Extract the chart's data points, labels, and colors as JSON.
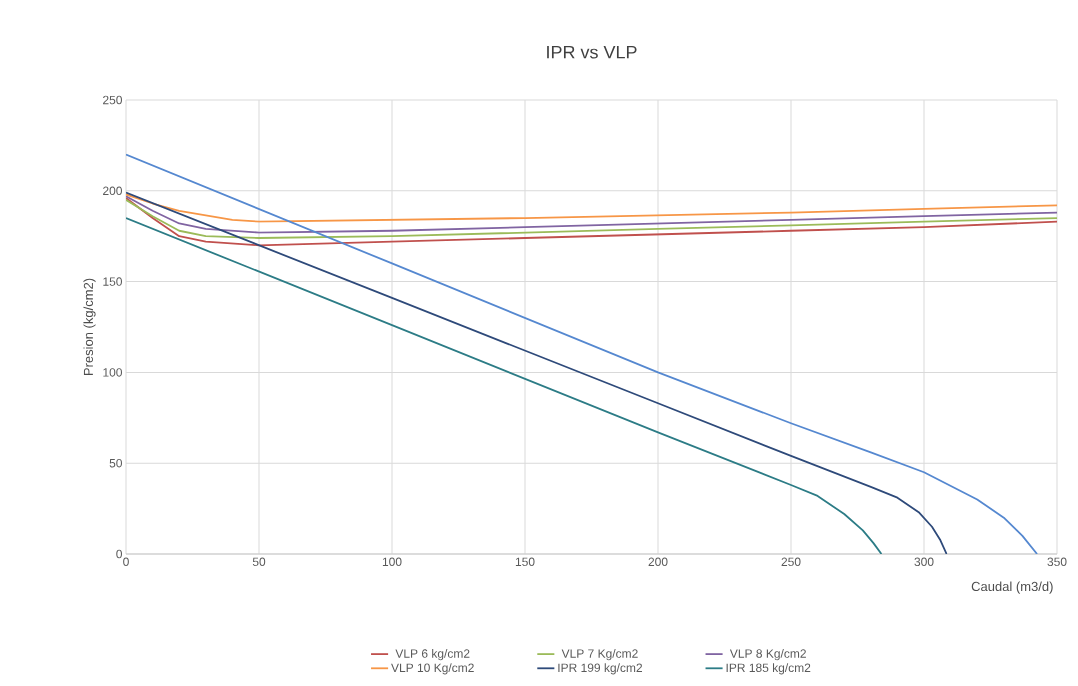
{
  "chart_data": {
    "type": "line",
    "title": "IPR vs VLP",
    "xlabel": "Caudal (m3/d)",
    "ylabel": "Presion (kg/cm2)",
    "xlim": [
      0,
      350
    ],
    "xticks": [
      0,
      50,
      100,
      150,
      200,
      250,
      300,
      350
    ],
    "ylim": [
      0,
      250
    ],
    "yticks": [
      0,
      50,
      100,
      150,
      200,
      250
    ],
    "grid": true,
    "legend": "bottom",
    "marker": "none",
    "series": [
      {
        "name": "VLP 6 kg/cm2",
        "color": "#c0504d",
        "x": [
          0,
          10,
          20,
          30,
          50,
          100,
          150,
          200,
          250,
          300,
          350
        ],
        "values": [
          196,
          185,
          175,
          172,
          170,
          172,
          174,
          176,
          178,
          180,
          183
        ]
      },
      {
        "name": "VLP 7 Kg/cm2",
        "color": "#9bbb59",
        "x": [
          0,
          10,
          20,
          30,
          50,
          100,
          150,
          200,
          250,
          300,
          350
        ],
        "values": [
          195,
          186,
          178,
          175,
          174,
          175,
          177,
          179,
          181,
          183,
          185
        ]
      },
      {
        "name": "VLP 8 Kg/cm2",
        "color": "#8064a2",
        "x": [
          0,
          10,
          20,
          30,
          50,
          100,
          150,
          200,
          250,
          300,
          350
        ],
        "values": [
          197,
          189,
          182,
          179,
          177,
          178,
          180,
          182,
          184,
          186,
          188
        ]
      },
      {
        "name": "VLP 10 Kg/cm2",
        "color": "#f79646",
        "x": [
          0,
          10,
          20,
          40,
          50,
          100,
          150,
          200,
          250,
          300,
          350
        ],
        "values": [
          198,
          193,
          189,
          184,
          183,
          184,
          185,
          186.5,
          188,
          190,
          192
        ]
      },
      {
        "name": "IPR 199 kg/cm2",
        "color": "#2e4a7a",
        "x": [
          0,
          100,
          200,
          250,
          280,
          290,
          298,
          303,
          306,
          308.5
        ],
        "values": [
          199,
          141,
          83,
          54,
          37,
          31,
          23,
          15,
          8,
          0
        ]
      },
      {
        "name": "IPR 185 kg/cm2",
        "color": "#2c7c86",
        "x": [
          0,
          100,
          200,
          250,
          260,
          270,
          277,
          281,
          284
        ],
        "values": [
          185,
          126,
          67,
          38,
          32,
          22,
          13,
          6,
          0
        ]
      },
      {
        "color": "#5588d0",
        "x": [
          0,
          100,
          200,
          250,
          280,
          300,
          320,
          330,
          337,
          342.5
        ],
        "values": [
          220,
          160,
          100,
          72,
          56,
          45,
          30,
          20,
          10,
          0
        ]
      }
    ]
  }
}
